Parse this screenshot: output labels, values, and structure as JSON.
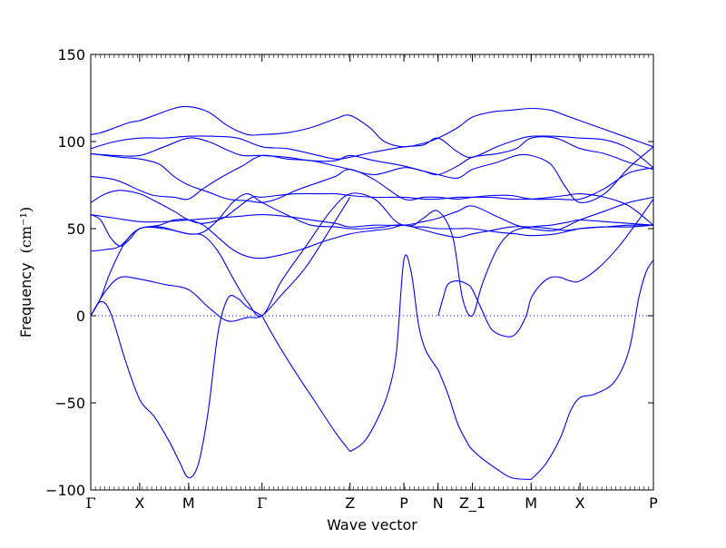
{
  "chart_data": {
    "type": "line",
    "title": "",
    "xlabel": "Wave vector",
    "ylabel": "Frequency",
    "ylabel_unit": "(cm⁻¹)",
    "ylim": [
      -100,
      150
    ],
    "yticks": [
      150,
      100,
      50,
      0,
      -50,
      -100
    ],
    "ytick_labels": [
      "150",
      "100",
      "50",
      "0",
      "−50",
      "−100"
    ],
    "xlim": [
      0,
      11.5
    ],
    "high_symmetry_points": [
      {
        "label": "Γ",
        "x": 0
      },
      {
        "label": "X",
        "x": 1.0
      },
      {
        "label": "M",
        "x": 2.0
      },
      {
        "label": "Γ",
        "x": 3.5
      },
      {
        "label": "Z",
        "x": 5.3
      },
      {
        "label": "P",
        "x": 6.4
      },
      {
        "label": "N",
        "x": 7.1
      },
      {
        "label": "Z_1",
        "x": 7.8
      },
      {
        "label": "M",
        "x": 9.0
      },
      {
        "label": "X",
        "x": 10.0
      },
      {
        "label": "P",
        "x": 11.5
      }
    ],
    "zero_line": true,
    "line_color": "#0000ff",
    "series": [
      {
        "x": [
          0,
          0.2,
          0.5,
          0.8,
          1.0,
          1.3,
          1.7,
          2.0,
          2.4,
          2.8,
          3.2,
          3.5,
          4.0,
          4.5,
          5.0,
          5.3,
          5.7,
          6.0,
          6.4,
          6.8,
          7.1,
          7.5,
          7.8,
          8.2,
          8.6,
          9.0,
          9.4,
          9.7,
          10.0,
          10.5,
          11.0,
          11.5
        ],
        "y": [
          104,
          105,
          108,
          111,
          112,
          115,
          119,
          120,
          117,
          109,
          104,
          104,
          105,
          108,
          113,
          115,
          108,
          100,
          97,
          99,
          102,
          108,
          114,
          117,
          118,
          119,
          118,
          115,
          112,
          107,
          102,
          97
        ]
      },
      {
        "x": [
          0,
          0.5,
          1.0,
          1.5,
          2.0,
          2.5,
          3.0,
          3.5,
          4.0,
          4.5,
          5.0,
          5.3,
          5.8,
          6.4,
          6.8,
          7.1,
          7.5,
          7.8,
          8.3,
          8.7,
          9.0,
          9.5,
          10.0,
          10.5,
          11.0,
          11.5
        ],
        "y": [
          96,
          100,
          102,
          102,
          103,
          103,
          102,
          97,
          96,
          93,
          90,
          91,
          94,
          97,
          98,
          102,
          94,
          91,
          97,
          101,
          103,
          103,
          102,
          101,
          96,
          85
        ]
      },
      {
        "x": [
          0,
          0.5,
          1.0,
          1.5,
          2.0,
          2.4,
          2.8,
          3.1,
          3.5,
          4.0,
          4.5,
          5.0,
          5.3,
          5.8,
          6.4,
          6.8,
          7.1,
          7.5,
          7.8,
          8.3,
          8.7,
          9.0,
          9.5,
          10.0,
          10.5,
          11.0,
          11.5
        ],
        "y": [
          93,
          92,
          92,
          97,
          102,
          100,
          95,
          92,
          92,
          91,
          89,
          89,
          92,
          89,
          86,
          83,
          81,
          86,
          91,
          93,
          96,
          102,
          102,
          96,
          93,
          88,
          84
        ]
      },
      {
        "x": [
          0,
          0.3,
          0.6,
          1.0,
          1.4,
          1.7,
          2.0,
          2.4,
          2.8,
          3.2,
          3.5,
          3.8,
          4.2,
          4.6,
          5.0,
          5.3,
          5.8,
          6.4,
          6.8,
          7.1,
          7.5,
          7.8,
          8.2,
          8.6,
          9.0,
          9.5,
          10.0,
          10.5,
          11.0,
          11.5
        ],
        "y": [
          93,
          92,
          91,
          90,
          87,
          80,
          75,
          71,
          67,
          66,
          65,
          67,
          72,
          76,
          80,
          84,
          78,
          67,
          68,
          68,
          67,
          68,
          69,
          69,
          67,
          67,
          67,
          73,
          82,
          85
        ]
      },
      {
        "x": [
          0,
          0.5,
          1.0,
          1.3,
          1.7,
          2.0,
          2.3,
          2.7,
          3.1,
          3.5,
          4.0,
          4.5,
          5.0,
          5.3,
          5.8,
          6.4,
          6.8,
          7.1,
          7.5,
          7.8,
          8.3,
          8.7,
          9.0,
          9.4,
          9.7,
          10.0,
          10.5,
          11.0,
          11.5
        ],
        "y": [
          80,
          78,
          72,
          69,
          68,
          67,
          73,
          80,
          86,
          92,
          90,
          89,
          86,
          84,
          81,
          85,
          83,
          81,
          79,
          84,
          88,
          92,
          92,
          87,
          74,
          65,
          70,
          85,
          97
        ]
      },
      {
        "x": [
          0,
          0.3,
          0.6,
          1.0,
          1.3,
          1.7,
          2.0,
          2.3,
          2.7,
          3.0,
          3.3,
          3.5,
          3.8,
          4.2,
          4.7,
          5.0,
          5.3,
          5.8,
          6.4,
          6.8,
          7.1,
          7.5,
          7.8,
          8.2,
          8.6,
          9.0,
          9.4,
          9.7,
          10.0,
          10.5,
          11.0,
          11.5
        ],
        "y": [
          65,
          70,
          72,
          70,
          66,
          60,
          55,
          53,
          56,
          62,
          68,
          68,
          69,
          70,
          70,
          70,
          69,
          68,
          68,
          67,
          67,
          68,
          68,
          68,
          67,
          67,
          68,
          69,
          70,
          68,
          63,
          52
        ]
      },
      {
        "x": [
          0,
          0.5,
          1.0,
          1.5,
          2.0,
          2.5,
          3.0,
          3.5,
          4.0,
          4.5,
          5.0,
          5.3,
          5.8,
          6.4,
          6.8,
          7.1,
          7.5,
          7.8,
          8.3,
          8.7,
          9.0,
          9.5,
          10.0,
          10.5,
          11.0,
          11.5
        ],
        "y": [
          58,
          56,
          54,
          54,
          55,
          56,
          57,
          58,
          57,
          55,
          53,
          51,
          52,
          52,
          54,
          56,
          60,
          63,
          57,
          52,
          50,
          49,
          55,
          60,
          65,
          68
        ]
      },
      {
        "x": [
          0,
          0.2,
          0.4,
          0.6,
          0.8,
          1.0,
          1.4,
          1.7,
          2.0,
          2.3,
          2.6,
          2.9,
          3.2,
          3.5,
          3.9,
          4.3,
          4.8,
          5.3,
          5.8,
          6.1,
          6.4,
          6.7,
          7.1,
          7.5,
          7.8,
          8.2,
          8.6,
          9.0,
          9.4,
          9.7,
          10.0,
          10.5,
          11.0,
          11.5
        ],
        "y": [
          58,
          55,
          45,
          40,
          44,
          50,
          52,
          55,
          55,
          52,
          45,
          38,
          34,
          33,
          35,
          38,
          43,
          47,
          49,
          50,
          52,
          50,
          47,
          45,
          47,
          49,
          51,
          51,
          50,
          49,
          50,
          51,
          52,
          52
        ]
      },
      {
        "x": [
          0,
          0.3,
          0.6,
          1.0,
          1.5,
          2.0,
          2.3,
          2.6,
          2.9,
          3.2,
          3.5,
          4.0,
          4.5,
          5.0,
          5.3,
          5.6,
          6.0,
          6.2,
          6.4,
          6.6,
          6.8,
          7.1,
          7.5,
          7.8,
          8.3,
          8.7,
          9.0,
          9.5,
          10.0,
          10.5,
          11.0,
          11.5
        ],
        "y": [
          37,
          38,
          40,
          50,
          50,
          47,
          48,
          55,
          65,
          70,
          65,
          58,
          52,
          51,
          50,
          50,
          51,
          52,
          52,
          51,
          51,
          50,
          50,
          50,
          48,
          47,
          46,
          47,
          50,
          51,
          51,
          52
        ]
      },
      {
        "x": [
          0,
          0.2,
          0.4,
          0.7,
          1.0,
          1.4,
          1.7,
          2.0,
          2.3,
          2.6,
          2.9,
          3.2,
          3.5,
          3.9,
          4.4,
          4.9,
          5.3,
          5.8,
          6.2,
          6.4,
          6.6,
          6.8,
          7.1,
          7.4,
          7.6,
          7.8,
          8.0,
          8.3,
          8.6,
          9.0,
          9.4,
          9.8,
          10.0,
          10.5,
          11.0,
          11.5
        ],
        "y": [
          0,
          10,
          25,
          42,
          50,
          51,
          49,
          47,
          46,
          37,
          22,
          8,
          0,
          20,
          40,
          60,
          70,
          67,
          55,
          52,
          52,
          56,
          60,
          45,
          10,
          0,
          18,
          38,
          48,
          51,
          52,
          54,
          55,
          54,
          53,
          52
        ]
      },
      {
        "x": [
          0,
          0.3,
          0.6,
          1.0,
          1.5,
          2.0,
          2.4,
          2.8,
          3.2,
          3.5,
          3.9,
          4.4,
          4.9,
          5.3
        ],
        "y": [
          0,
          14,
          22,
          21,
          18,
          15,
          5,
          -3,
          -1,
          0,
          12,
          28,
          50,
          68
        ]
      },
      {
        "x": [
          0,
          0.2,
          0.4,
          0.7,
          1.0,
          1.3,
          1.6,
          1.8,
          2.0,
          2.2,
          2.4,
          2.6,
          2.8,
          3.0,
          3.2,
          3.5
        ],
        "y": [
          0,
          8,
          2,
          -25,
          -48,
          -58,
          -72,
          -83,
          -93,
          -85,
          -55,
          -10,
          10,
          10,
          5,
          0
        ]
      },
      {
        "x": [
          3.5,
          3.8,
          4.2,
          4.6,
          5.0,
          5.3
        ],
        "y": [
          0,
          -15,
          -33,
          -50,
          -67,
          -78
        ]
      },
      {
        "x": [
          5.3,
          5.6,
          5.9,
          6.1,
          6.25,
          6.4,
          6.55,
          6.7,
          6.85,
          7.1
        ],
        "y": [
          -78,
          -72,
          -57,
          -42,
          -20,
          32,
          25,
          -5,
          -20,
          -31
        ]
      },
      {
        "x": [
          7.1,
          7.3,
          7.5,
          7.7,
          7.8,
          8.0,
          8.3,
          8.6,
          9.0
        ],
        "y": [
          -31,
          -45,
          -62,
          -73,
          -77,
          -82,
          -88,
          -93,
          -94
        ]
      },
      {
        "x": [
          9.0,
          9.3,
          9.6,
          9.8,
          10.0,
          10.3,
          10.7,
          11.0,
          11.2,
          11.35,
          11.5
        ],
        "y": [
          -94,
          -85,
          -70,
          -55,
          -47,
          -45,
          -38,
          -20,
          10,
          25,
          32
        ]
      },
      {
        "x": [
          7.1,
          7.2,
          7.3,
          7.5,
          7.7,
          7.8,
          8.0,
          8.2,
          8.5,
          8.7,
          8.9,
          9.0,
          9.2,
          9.4,
          9.6,
          9.8,
          10.0,
          10.4,
          10.8,
          11.2,
          11.5
        ],
        "y": [
          0,
          10,
          18,
          20,
          18,
          15,
          3,
          -8,
          -12,
          -10,
          0,
          10,
          18,
          22,
          22,
          20,
          20,
          28,
          40,
          55,
          67
        ]
      }
    ]
  }
}
